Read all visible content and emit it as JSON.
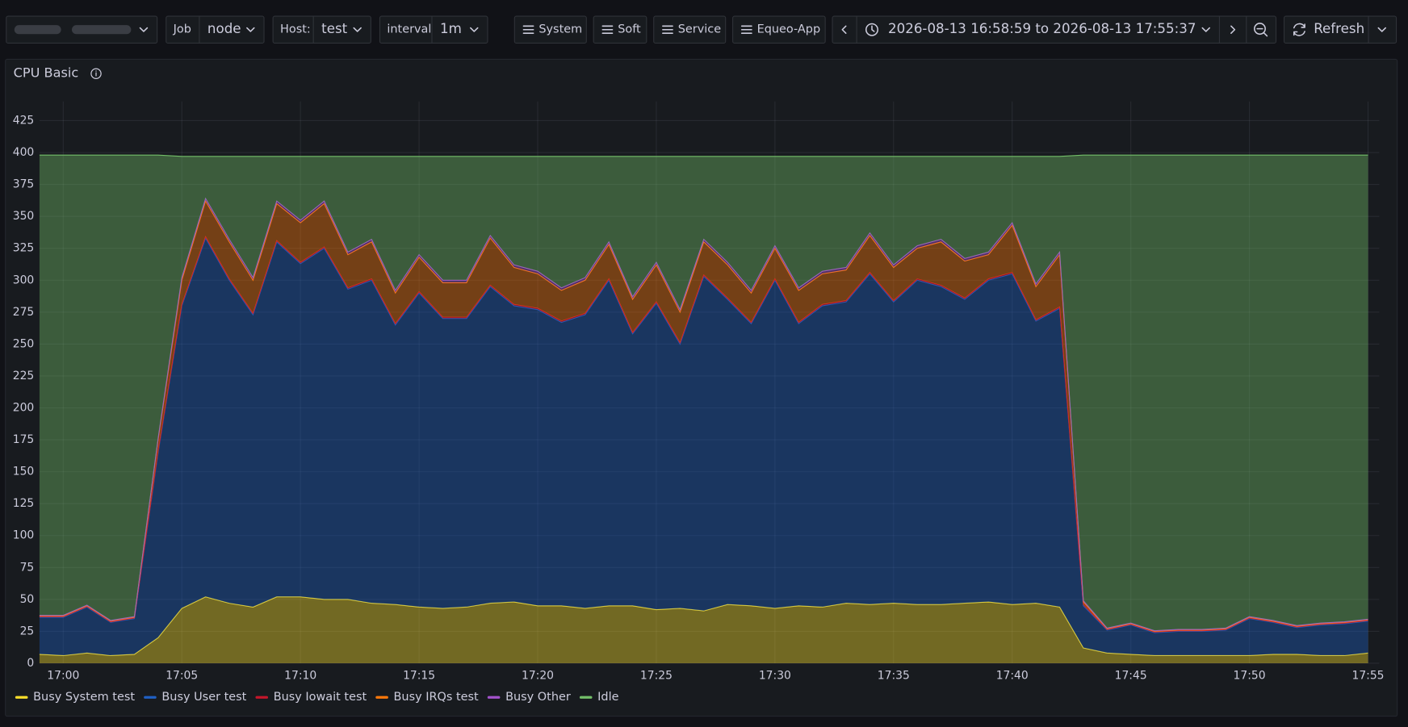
{
  "toolbar": {
    "job": {
      "label": "Job",
      "value": "node"
    },
    "host": {
      "label": "Host:",
      "value": "test"
    },
    "interval": {
      "label": "interval",
      "value": "1m"
    },
    "buttons": [
      "System",
      "Soft",
      "Service",
      "Equeo-App"
    ],
    "time_range": "2026-08-13 16:58:59 to 2026-08-13 17:55:37",
    "refresh": "Refresh"
  },
  "chart_data": {
    "type": "area",
    "title": "CPU Basic",
    "stacked": true,
    "fill_opacity": 0.4,
    "grid": true,
    "legend": "bottom-left",
    "x": [
      "16:59",
      "17:00",
      "17:01",
      "17:02",
      "17:03",
      "17:04",
      "17:05",
      "17:06",
      "17:07",
      "17:08",
      "17:09",
      "17:10",
      "17:11",
      "17:12",
      "17:13",
      "17:14",
      "17:15",
      "17:16",
      "17:17",
      "17:18",
      "17:19",
      "17:20",
      "17:21",
      "17:22",
      "17:23",
      "17:24",
      "17:25",
      "17:26",
      "17:27",
      "17:28",
      "17:29",
      "17:30",
      "17:31",
      "17:32",
      "17:33",
      "17:34",
      "17:35",
      "17:36",
      "17:37",
      "17:38",
      "17:39",
      "17:40",
      "17:41",
      "17:42",
      "17:43",
      "17:44",
      "17:45",
      "17:46",
      "17:47",
      "17:48",
      "17:49",
      "17:50",
      "17:51",
      "17:52",
      "17:53",
      "17:54",
      "17:55"
    ],
    "xticks": [
      "17:00",
      "17:05",
      "17:10",
      "17:15",
      "17:20",
      "17:25",
      "17:30",
      "17:35",
      "17:40",
      "17:45",
      "17:50",
      "17:55"
    ],
    "ylim": [
      0,
      440
    ],
    "yticks": [
      0,
      25,
      50,
      75,
      100,
      125,
      150,
      175,
      200,
      225,
      250,
      275,
      300,
      325,
      350,
      375,
      400,
      425
    ],
    "series": [
      {
        "name": "Busy System test",
        "color": "#fade2a",
        "values": [
          7,
          6,
          8,
          6,
          7,
          20,
          43,
          52,
          47,
          44,
          52,
          52,
          50,
          50,
          47,
          46,
          44,
          43,
          44,
          47,
          48,
          45,
          45,
          43,
          45,
          45,
          42,
          43,
          41,
          46,
          45,
          43,
          45,
          44,
          47,
          46,
          47,
          46,
          46,
          47,
          48,
          46,
          47,
          44,
          12,
          8,
          7,
          6,
          6,
          6,
          6,
          6,
          7,
          7,
          6,
          6,
          8
        ]
      },
      {
        "name": "Busy User test",
        "color": "#1f60c4",
        "values": [
          29,
          30,
          36,
          26,
          28,
          145,
          237,
          281,
          253,
          229,
          278,
          261,
          275,
          243,
          253,
          219,
          246,
          227,
          226,
          248,
          232,
          232,
          222,
          230,
          255,
          213,
          240,
          207,
          262,
          239,
          221,
          257,
          221,
          236,
          236,
          259,
          236,
          254,
          249,
          238,
          252,
          259,
          221,
          234,
          33,
          18,
          23,
          18,
          19,
          19,
          20,
          29,
          25,
          21,
          24,
          25,
          25
        ]
      },
      {
        "name": "Busy Iowait test",
        "color": "#c4162a",
        "values": [
          0.5,
          0.5,
          0.5,
          0.5,
          0.5,
          1,
          1,
          1,
          1,
          1,
          1,
          1,
          1,
          1,
          1,
          1,
          1,
          1,
          1,
          1,
          1,
          1,
          1,
          1,
          1,
          1,
          1,
          1,
          1,
          1,
          1,
          1,
          1,
          1,
          1,
          1,
          1,
          1,
          1,
          1,
          1,
          1,
          1,
          1,
          1,
          0.5,
          0.5,
          0.5,
          0.5,
          0.5,
          0.5,
          0.5,
          0.5,
          0.5,
          0.5,
          0.5,
          0.5
        ]
      },
      {
        "name": "Busy IRQs test",
        "color": "#ff780a",
        "values": [
          0.5,
          0.5,
          0.5,
          0.5,
          0.5,
          9,
          19,
          28,
          29,
          26,
          29,
          31,
          34,
          26,
          29,
          24,
          27,
          27,
          27,
          37,
          29,
          27,
          24,
          26,
          27,
          26,
          29,
          24,
          26,
          26,
          23,
          24,
          25,
          24,
          24,
          29,
          26,
          24,
          34,
          29,
          19,
          37,
          26,
          41,
          2,
          0.5,
          0.5,
          0.5,
          0.5,
          0.5,
          0.5,
          0.5,
          0.5,
          0.5,
          0.5,
          0.5,
          0.5
        ]
      },
      {
        "name": "Busy Other",
        "color": "#a352cc",
        "values": [
          0.5,
          0.5,
          0.5,
          0.5,
          0.5,
          1,
          2,
          2,
          2,
          2,
          2,
          2,
          2,
          2,
          2,
          2,
          2,
          2,
          2,
          2,
          2,
          2,
          2,
          2,
          2,
          2,
          2,
          2,
          2,
          2,
          2,
          2,
          2,
          2,
          2,
          2,
          2,
          2,
          2,
          2,
          2,
          2,
          2,
          2,
          1,
          0.5,
          0.5,
          0.5,
          0.5,
          0.5,
          0.5,
          0.5,
          0.5,
          0.5,
          0.5,
          0.5,
          0.5
        ]
      },
      {
        "name": "Idle",
        "color": "#73bf69",
        "values": [
          360.5,
          360.5,
          352.5,
          364.5,
          361.5,
          222,
          95,
          33,
          65,
          95,
          35,
          50,
          35,
          75,
          65,
          105,
          77,
          97,
          97,
          62,
          85,
          90,
          103,
          95,
          67,
          110,
          83,
          120,
          65,
          83,
          105,
          70,
          103,
          90,
          87,
          60,
          85,
          70,
          65,
          80,
          75,
          52,
          100,
          75,
          349,
          370.5,
          366.5,
          372.5,
          371.5,
          371.5,
          370.5,
          361.5,
          364.5,
          368.5,
          366.5,
          365.5,
          363.5
        ]
      }
    ]
  }
}
